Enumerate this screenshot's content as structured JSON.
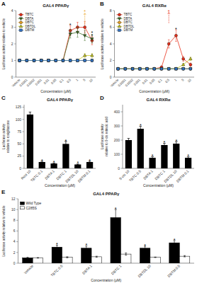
{
  "chart_data": [
    {
      "panel": "A",
      "type": "line",
      "title": "GAL4 PPARγ",
      "xlabel": "Concentration (μM)",
      "ylabel": "Luciferase activity relative to vehicle",
      "categories": [
        "Vehicle",
        "0.0001",
        "0.0002",
        "0.001",
        "0.01",
        "0.05",
        "0.1",
        "0.5",
        "1",
        "5",
        "10"
      ],
      "series": [
        {
          "name": "TBTC",
          "color": "#e8301a",
          "marker": "circle",
          "values": [
            1.0,
            1.0,
            1.0,
            1.0,
            1.0,
            1.0,
            1.0,
            2.8,
            3.0,
            3.0,
            2.2
          ],
          "errors": [
            0.05,
            0.05,
            0.05,
            0.05,
            0.05,
            0.05,
            0.05,
            0.3,
            0.3,
            0.35,
            0.25
          ]
        },
        {
          "name": "DBTA",
          "color": "#3d6b23",
          "marker": "triangle-down",
          "values": [
            1.0,
            1.0,
            1.0,
            1.0,
            1.0,
            1.0,
            1.0,
            2.6,
            2.7,
            2.5,
            2.3
          ],
          "errors": [
            0.05,
            0.05,
            0.05,
            0.05,
            0.05,
            0.05,
            0.05,
            0.25,
            0.3,
            0.3,
            0.25
          ]
        },
        {
          "name": "DBTC",
          "color": "#e8a020",
          "marker": "circle",
          "values": [
            1.0,
            1.0,
            1.0,
            1.0,
            1.0,
            1.0,
            1.0,
            1.0,
            1.0,
            1.0,
            1.0
          ],
          "errors": [
            0.05,
            0.05,
            0.05,
            0.05,
            0.05,
            0.05,
            0.05,
            0.05,
            0.05,
            0.05,
            0.05
          ]
        },
        {
          "name": "DBTDL",
          "color": "#c8c820",
          "marker": "triangle-up",
          "values": [
            1.0,
            1.0,
            1.0,
            1.0,
            1.0,
            1.0,
            1.0,
            1.0,
            1.0,
            1.3,
            1.3
          ],
          "errors": [
            0.05,
            0.05,
            0.05,
            0.05,
            0.05,
            0.05,
            0.05,
            0.05,
            0.05,
            0.12,
            0.12
          ]
        },
        {
          "name": "DBTM",
          "color": "#3070c0",
          "marker": "square",
          "values": [
            1.0,
            1.0,
            1.0,
            1.0,
            1.0,
            1.0,
            1.0,
            1.0,
            1.0,
            1.0,
            1.0
          ],
          "errors": [
            0.05,
            0.05,
            0.05,
            0.05,
            0.05,
            0.05,
            0.05,
            0.05,
            0.05,
            0.05,
            0.05
          ]
        }
      ],
      "ylim": [
        0,
        4
      ],
      "yticks": [
        0,
        1,
        2,
        3,
        4
      ],
      "legend": "upper left",
      "grid": false,
      "annotations": [
        {
          "text": "*",
          "x": "0.5",
          "series": "TBTC"
        },
        {
          "text": "*",
          "x": "10",
          "series": "TBTC"
        },
        {
          "text": "*",
          "x": "10",
          "series": "DBTA"
        },
        {
          "text": "*",
          "x": "5",
          "y": 3.92,
          "arrow": [
            3.2,
            3.85
          ],
          "color": "#e8a020"
        }
      ]
    },
    {
      "panel": "B",
      "type": "line",
      "title": "GAL4 RXRα",
      "xlabel": "Concentration (μM)",
      "ylabel": "Luciferase activity relative to vehicle",
      "categories": [
        "Vehicle",
        "0.0001",
        "0.0002",
        "0.001",
        "0.01",
        "0.05",
        "0.1",
        "0.5",
        "1",
        "5",
        "10"
      ],
      "series": [
        {
          "name": "TBTC",
          "color": "#e8301a",
          "marker": "circle",
          "values": [
            1.0,
            1.0,
            1.0,
            1.0,
            1.0,
            1.0,
            1.2,
            4.0,
            5.0,
            2.2,
            1.5
          ],
          "errors": [
            0.05,
            0.05,
            0.05,
            0.05,
            0.05,
            0.05,
            0.1,
            0.5,
            0.7,
            0.3,
            0.2
          ]
        },
        {
          "name": "DBTA",
          "color": "#3d6b23",
          "marker": "triangle-down",
          "values": [
            1.0,
            1.0,
            1.0,
            1.0,
            1.0,
            1.0,
            1.0,
            1.0,
            1.0,
            1.0,
            1.0
          ],
          "errors": [
            0.05,
            0.05,
            0.05,
            0.05,
            0.05,
            0.05,
            0.05,
            0.05,
            0.05,
            0.05,
            0.05
          ]
        },
        {
          "name": "DBTC",
          "color": "#e8a020",
          "marker": "circle",
          "values": [
            1.0,
            1.0,
            1.0,
            1.0,
            1.0,
            1.0,
            1.0,
            1.0,
            1.0,
            1.0,
            1.0
          ],
          "errors": [
            0.05,
            0.05,
            0.05,
            0.05,
            0.05,
            0.05,
            0.05,
            0.05,
            0.05,
            0.05,
            0.05
          ]
        },
        {
          "name": "DBTDL",
          "color": "#c8c820",
          "marker": "triangle-up",
          "values": [
            1.0,
            1.0,
            1.0,
            1.0,
            1.0,
            1.0,
            1.0,
            1.0,
            1.0,
            1.5,
            2.2
          ],
          "errors": [
            0.05,
            0.05,
            0.05,
            0.05,
            0.05,
            0.05,
            0.05,
            0.05,
            0.05,
            0.15,
            0.2
          ]
        },
        {
          "name": "DBTM",
          "color": "#3070c0",
          "marker": "square",
          "values": [
            1.0,
            1.0,
            1.0,
            1.0,
            1.0,
            1.0,
            1.0,
            1.0,
            1.0,
            1.0,
            1.0
          ],
          "errors": [
            0.05,
            0.05,
            0.05,
            0.05,
            0.05,
            0.05,
            0.05,
            0.05,
            0.05,
            0.05,
            0.05
          ]
        }
      ],
      "ylim": [
        0,
        8
      ],
      "yticks": [
        0,
        2,
        4,
        6,
        8
      ],
      "legend": "upper left",
      "grid": false,
      "annotations": [
        {
          "text": "*",
          "x": "0.5",
          "y": 7.85,
          "arrow": [
            6.5,
            7.8
          ],
          "color": "#e8301a"
        },
        {
          "text": "*",
          "x": "1",
          "series": "TBTC"
        }
      ]
    },
    {
      "panel": "C",
      "type": "bar",
      "title": "GAL4 PPARγ",
      "xlabel": "Concentration (μM)",
      "ylabel": "Luciferase activity\nrelative to rosiglitazone",
      "categories": [
        "Rosi 10",
        "TBTC 0.1",
        "DBTA 1",
        "DBTC 1",
        "DBTDL 10",
        "DBTM 0.1"
      ],
      "values": [
        110,
        13,
        10,
        50,
        8,
        13
      ],
      "errors": [
        5,
        1.5,
        1.2,
        5,
        1.0,
        1.5
      ],
      "color": "#000000",
      "ylim": [
        0,
        130
      ],
      "yticks": [
        0,
        25,
        50,
        75,
        100,
        125
      ],
      "grid": false,
      "annotations": [
        {
          "text": "*",
          "x": "TBTC 0.1"
        },
        {
          "text": "*",
          "x": "DBTA 1"
        },
        {
          "text": "*",
          "x": "DBTC 1"
        },
        {
          "text": "*",
          "x": "DBTDL 10"
        },
        {
          "text": "*",
          "x": "DBTM 0.1"
        }
      ]
    },
    {
      "panel": "D",
      "type": "bar",
      "title": "GAL4 RXRα",
      "xlabel": "Concentration (μM)",
      "ylabel": "Luciferase activity\nrelative to 9-cis retinoic acid",
      "categories": [
        "9-cis 10",
        "TBTC 0.5",
        "DBTA 1",
        "DBTC 1",
        "DBTDL 10",
        "DBTM 0.1"
      ],
      "values": [
        200,
        280,
        75,
        165,
        175,
        75
      ],
      "errors": [
        12,
        18,
        8,
        12,
        14,
        7
      ],
      "color": "#000000",
      "ylim": [
        0,
        450
      ],
      "yticks": [
        0,
        100,
        200,
        300,
        400
      ],
      "grid": false,
      "annotations": [
        {
          "text": "*",
          "x": "TBTC 0.5"
        },
        {
          "text": "*",
          "x": "DBTA 1"
        },
        {
          "text": "*",
          "x": "DBTC 1"
        },
        {
          "text": "*",
          "x": "DBTDL 10"
        },
        {
          "text": "*",
          "x": "DBTM 0.1"
        }
      ]
    },
    {
      "panel": "E",
      "type": "bar",
      "title": "GAL4 PPARγ",
      "xlabel": "Concentration (μM)",
      "ylabel": "Luciferase activity relative to vehicle",
      "categories": [
        "Vehicle",
        "TBTC 0.5",
        "DBTA 1",
        "DBTC 1",
        "DBTDL 10",
        "DBTM 0.5"
      ],
      "series": [
        {
          "name": "Wild Type",
          "color": "#000000",
          "values": [
            1.0,
            3.0,
            2.8,
            8.5,
            2.8,
            3.8
          ],
          "errors": [
            0.1,
            0.35,
            0.4,
            1.5,
            0.35,
            0.4
          ]
        },
        {
          "name": "C285S",
          "color": "#ffffff",
          "values": [
            1.0,
            1.1,
            1.2,
            1.7,
            1.1,
            1.3
          ],
          "errors": [
            0.05,
            0.1,
            0.1,
            0.2,
            0.05,
            0.12
          ]
        }
      ],
      "ylim": [
        0,
        12
      ],
      "yticks": [
        0,
        2,
        4,
        6,
        8,
        10,
        12
      ],
      "legend": "upper left",
      "grid": false,
      "annotations": [
        {
          "text": "*",
          "x": "TBTC 0.5",
          "series": "Wild Type"
        },
        {
          "text": "*",
          "x": "DBTA 1",
          "series": "Wild Type"
        },
        {
          "text": "*",
          "x": "DBTC 1",
          "series": "Wild Type"
        },
        {
          "text": "*",
          "x": "DBTDL 10",
          "series": "Wild Type"
        },
        {
          "text": "*",
          "x": "DBTM 0.5",
          "series": "Wild Type"
        }
      ]
    }
  ]
}
